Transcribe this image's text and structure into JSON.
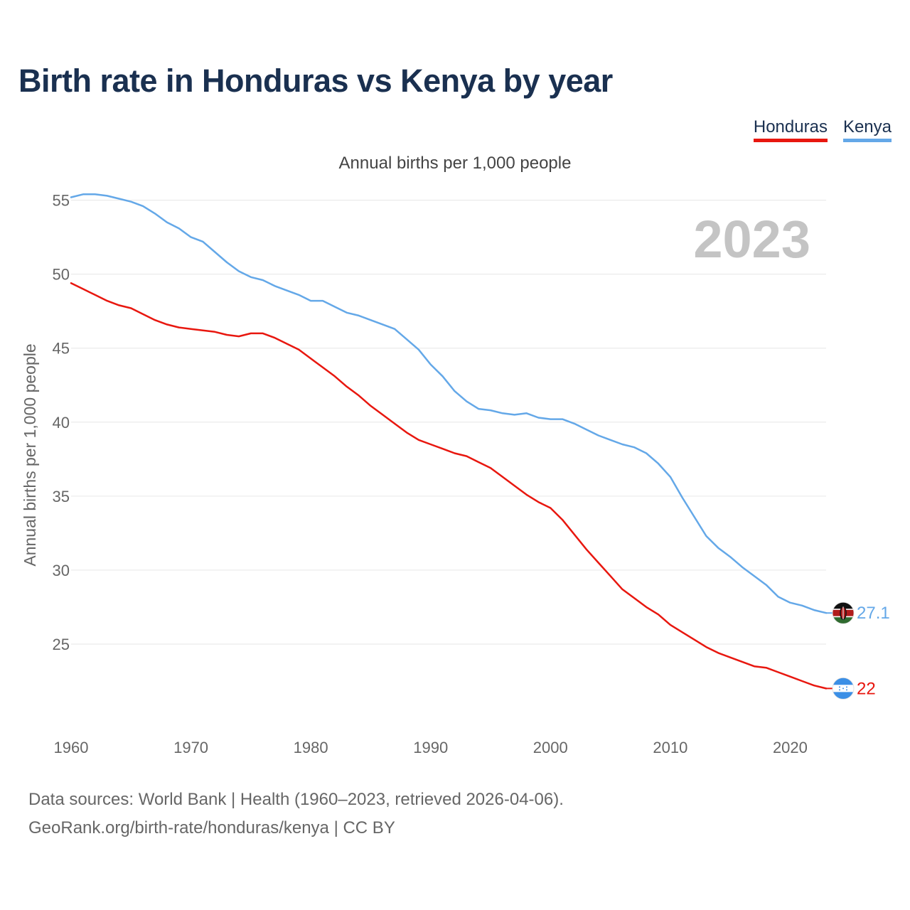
{
  "chart_data": {
    "type": "line",
    "title": "Birth rate in Honduras vs Kenya by year",
    "subtitle": "Annual births per 1,000 people",
    "ylabel": "Annual births per 1,000 people",
    "xlabel": "",
    "year_label": "2023",
    "xlim": [
      1960,
      2023
    ],
    "ylim": [
      20,
      57
    ],
    "y_ticks": [
      25,
      30,
      35,
      40,
      45,
      50,
      55
    ],
    "x_ticks": [
      1960,
      1970,
      1980,
      1990,
      2000,
      2010,
      2020
    ],
    "grid": true,
    "legend_position": "top-right",
    "x": [
      1960,
      1961,
      1962,
      1963,
      1964,
      1965,
      1966,
      1967,
      1968,
      1969,
      1970,
      1971,
      1972,
      1973,
      1974,
      1975,
      1976,
      1977,
      1978,
      1979,
      1980,
      1981,
      1982,
      1983,
      1984,
      1985,
      1986,
      1987,
      1988,
      1989,
      1990,
      1991,
      1992,
      1993,
      1994,
      1995,
      1996,
      1997,
      1998,
      1999,
      2000,
      2001,
      2002,
      2003,
      2004,
      2005,
      2006,
      2007,
      2008,
      2009,
      2010,
      2011,
      2012,
      2013,
      2014,
      2015,
      2016,
      2017,
      2018,
      2019,
      2020,
      2021,
      2022,
      2023
    ],
    "series": [
      {
        "name": "Honduras",
        "color": "#e8170f",
        "end_label": "22",
        "flag_icon": "honduras-flag-icon",
        "values": [
          49.4,
          49.0,
          48.6,
          48.2,
          47.9,
          47.7,
          47.3,
          46.9,
          46.6,
          46.4,
          46.3,
          46.2,
          46.1,
          45.9,
          45.8,
          46.0,
          46.0,
          45.7,
          45.3,
          44.9,
          44.3,
          43.7,
          43.1,
          42.4,
          41.8,
          41.1,
          40.5,
          39.9,
          39.3,
          38.8,
          38.5,
          38.2,
          37.9,
          37.7,
          37.3,
          36.9,
          36.3,
          35.7,
          35.1,
          34.6,
          34.2,
          33.4,
          32.4,
          31.4,
          30.5,
          29.6,
          28.7,
          28.1,
          27.5,
          27.0,
          26.3,
          25.8,
          25.3,
          24.8,
          24.4,
          24.1,
          23.8,
          23.5,
          23.4,
          23.1,
          22.8,
          22.5,
          22.2,
          22.0
        ]
      },
      {
        "name": "Kenya",
        "color": "#64a8e8",
        "end_label": "27.1",
        "flag_icon": "kenya-flag-icon",
        "values": [
          55.2,
          55.4,
          55.4,
          55.3,
          55.1,
          54.9,
          54.6,
          54.1,
          53.5,
          53.1,
          52.5,
          52.2,
          51.5,
          50.8,
          50.2,
          49.8,
          49.6,
          49.2,
          48.9,
          48.6,
          48.2,
          48.2,
          47.8,
          47.4,
          47.2,
          46.9,
          46.6,
          46.3,
          45.6,
          44.9,
          43.9,
          43.1,
          42.1,
          41.4,
          40.9,
          40.8,
          40.6,
          40.5,
          40.6,
          40.3,
          40.2,
          40.2,
          39.9,
          39.5,
          39.1,
          38.8,
          38.5,
          38.3,
          37.9,
          37.2,
          36.3,
          34.9,
          33.6,
          32.3,
          31.5,
          30.9,
          30.2,
          29.6,
          29.0,
          28.2,
          27.8,
          27.6,
          27.3,
          27.1
        ]
      }
    ]
  },
  "footer": {
    "line1": "Data sources: World Bank | Health (1960–2023, retrieved 2026-04-06).",
    "line2": "GeoRank.org/birth-rate/honduras/kenya | CC BY"
  }
}
